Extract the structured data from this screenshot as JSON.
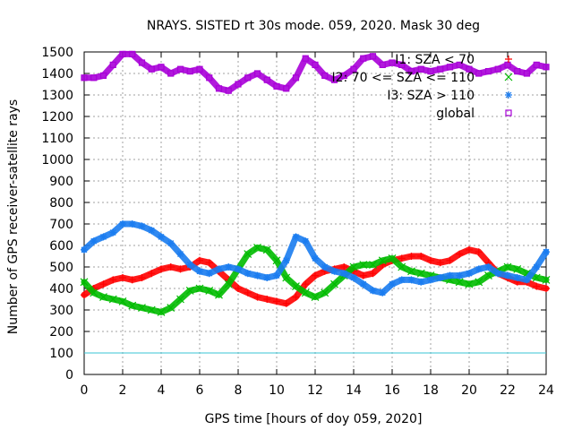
{
  "chart_data": {
    "type": "scatter",
    "title": "NRAYS. SISTED rt 30s mode. 059, 2020. Mask 30 deg",
    "xlabel": "GPS time [hours of doy 059, 2020]",
    "ylabel": "Number of GPS receiver-satellite rays",
    "xlim": [
      0,
      24
    ],
    "ylim": [
      0,
      1500
    ],
    "x_ticks": [
      "0",
      "2",
      "4",
      "6",
      "8",
      "10",
      "12",
      "14",
      "16",
      "18",
      "20",
      "22",
      "24"
    ],
    "y_ticks": [
      "0",
      "100",
      "200",
      "300",
      "400",
      "500",
      "600",
      "700",
      "800",
      "900",
      "1000",
      "1100",
      "1200",
      "1300",
      "1400",
      "1500"
    ],
    "grid": true,
    "legend_position": "top-right",
    "legend": [
      {
        "label": "I1: SZA < 70",
        "marker": "+",
        "color": "#ff0000"
      },
      {
        "label": "I2: 70 <= SZA <= 110",
        "marker": "x",
        "color": "#00bb00"
      },
      {
        "label": "I3: SZA > 110",
        "marker": "*",
        "color": "#1a7cf0"
      },
      {
        "label": "global",
        "marker": "square",
        "color": "#a800d8"
      }
    ],
    "reference_line": {
      "y": 100,
      "color": "#39c6d6"
    },
    "x": [
      0,
      0.5,
      1,
      1.5,
      2,
      2.5,
      3,
      3.5,
      4,
      4.5,
      5,
      5.5,
      6,
      6.5,
      7,
      7.5,
      8,
      8.5,
      9,
      9.5,
      10,
      10.5,
      11,
      11.5,
      12,
      12.5,
      13,
      13.5,
      14,
      14.5,
      15,
      15.5,
      16,
      16.5,
      17,
      17.5,
      18,
      18.5,
      19,
      19.5,
      20,
      20.5,
      21,
      21.5,
      22,
      22.5,
      23,
      23.5,
      24
    ],
    "series": [
      {
        "name": "I1: SZA < 70",
        "color": "#ff0000",
        "marker": "+",
        "values": [
          370,
          400,
          420,
          440,
          450,
          440,
          450,
          470,
          490,
          500,
          490,
          500,
          530,
          520,
          480,
          440,
          400,
          380,
          360,
          350,
          340,
          330,
          360,
          420,
          460,
          480,
          490,
          500,
          480,
          460,
          470,
          510,
          530,
          540,
          550,
          550,
          530,
          520,
          530,
          560,
          580,
          570,
          520,
          470,
          450,
          430,
          430,
          410,
          400
        ]
      },
      {
        "name": "I2: 70 <= SZA <= 110",
        "color": "#00bb00",
        "marker": "x",
        "values": [
          430,
          380,
          360,
          350,
          340,
          320,
          310,
          300,
          290,
          310,
          350,
          390,
          400,
          390,
          370,
          420,
          490,
          560,
          590,
          580,
          530,
          450,
          410,
          380,
          360,
          380,
          420,
          460,
          500,
          510,
          510,
          530,
          540,
          500,
          480,
          470,
          460,
          450,
          440,
          430,
          420,
          430,
          460,
          480,
          500,
          490,
          470,
          450,
          440
        ]
      },
      {
        "name": "I3: SZA > 110",
        "color": "#1a7cf0",
        "marker": "*",
        "values": [
          580,
          620,
          640,
          660,
          700,
          700,
          690,
          670,
          640,
          610,
          560,
          510,
          480,
          470,
          490,
          500,
          490,
          470,
          460,
          450,
          460,
          530,
          640,
          620,
          540,
          500,
          480,
          470,
          450,
          420,
          390,
          380,
          420,
          440,
          440,
          430,
          440,
          450,
          460,
          460,
          470,
          490,
          500,
          470,
          460,
          450,
          440,
          500,
          570
        ]
      },
      {
        "name": "global",
        "color": "#a800d8",
        "marker": "square",
        "values": [
          1380,
          1380,
          1390,
          1440,
          1490,
          1490,
          1450,
          1420,
          1430,
          1400,
          1420,
          1410,
          1420,
          1380,
          1330,
          1320,
          1350,
          1380,
          1400,
          1370,
          1340,
          1330,
          1380,
          1470,
          1440,
          1390,
          1370,
          1390,
          1420,
          1470,
          1480,
          1440,
          1450,
          1440,
          1410,
          1420,
          1410,
          1420,
          1430,
          1440,
          1420,
          1400,
          1410,
          1420,
          1440,
          1410,
          1400,
          1440,
          1430
        ]
      }
    ]
  }
}
